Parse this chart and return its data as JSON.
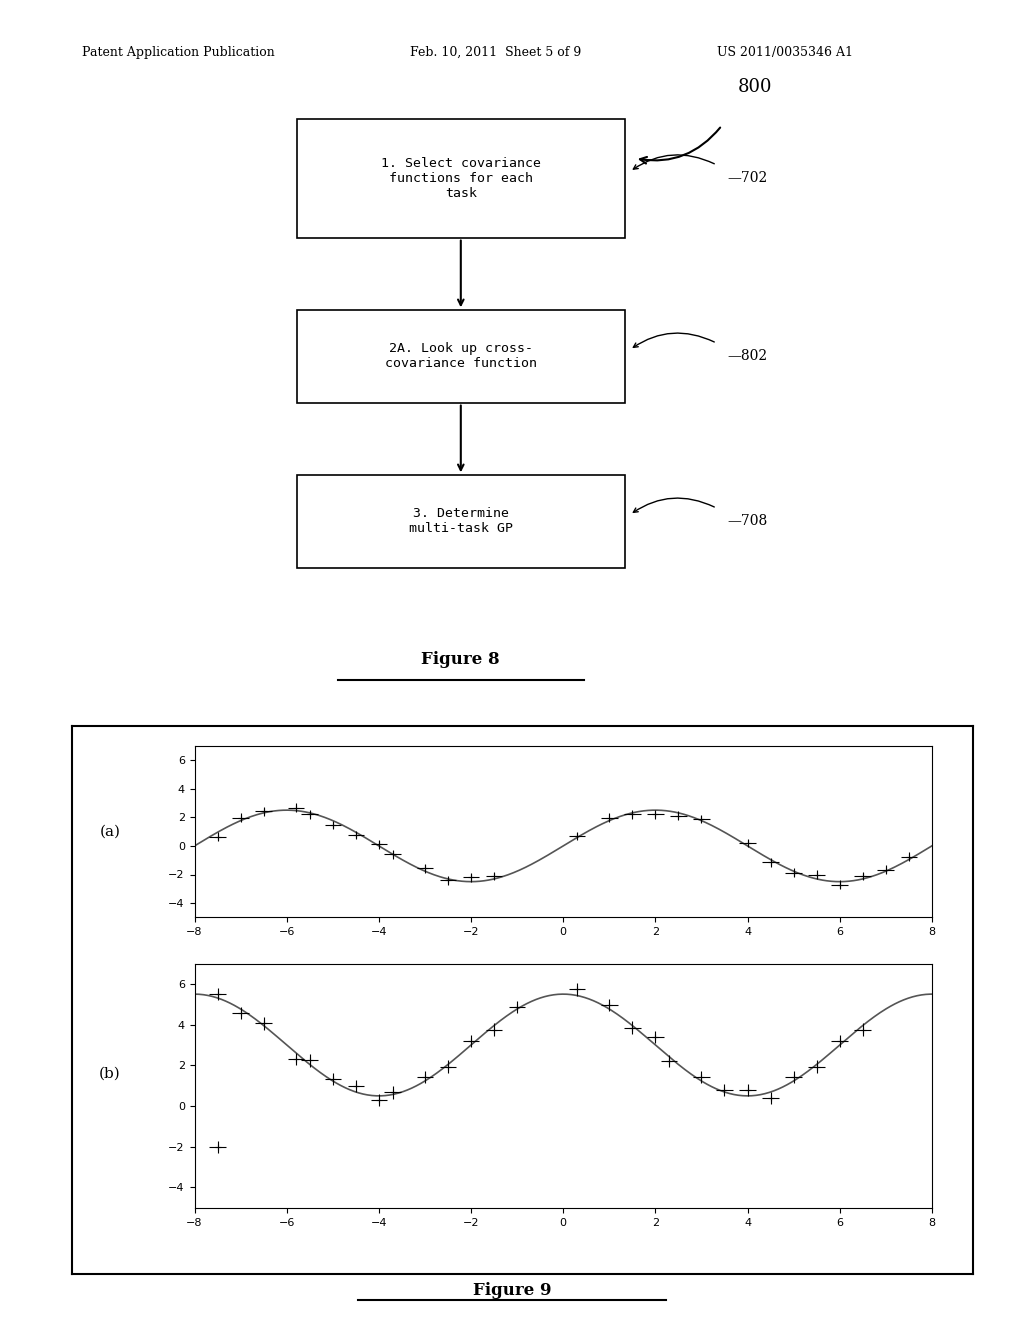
{
  "background_color": "#ffffff",
  "header_left": "Patent Application Publication",
  "header_center": "Feb. 10, 2011  Sheet 5 of 9",
  "header_right": "US 2011/0035346 A1",
  "fig8_label": "800",
  "fig8_boxes": [
    {
      "text": "1. Select covariance\nfunctions for each\ntask",
      "label": "702"
    },
    {
      "text": "2A. Look up cross-\ncovariance function",
      "label": "802"
    },
    {
      "text": "3. Determine\nmulti-task GP",
      "label": "708"
    }
  ],
  "fig8_caption": "Figure 8",
  "fig9_caption": "Figure 9",
  "plot_a_label": "(a)",
  "plot_b_label": "(b)",
  "xlim": [
    -8,
    8
  ],
  "plot_a_ylim": [
    -5,
    7
  ],
  "plot_b_ylim": [
    -5,
    7
  ],
  "xticks": [
    -8,
    -6,
    -4,
    -2,
    0,
    2,
    4,
    6,
    8
  ],
  "plot_a_yticks": [
    -4,
    -2,
    0,
    2,
    4,
    6
  ],
  "plot_b_yticks": [
    -4,
    -2,
    0,
    2,
    4,
    6
  ],
  "sine_color": "#555555",
  "cross_color": "#000000",
  "box_facecolor": "#ffffff",
  "box_edgecolor": "#000000"
}
